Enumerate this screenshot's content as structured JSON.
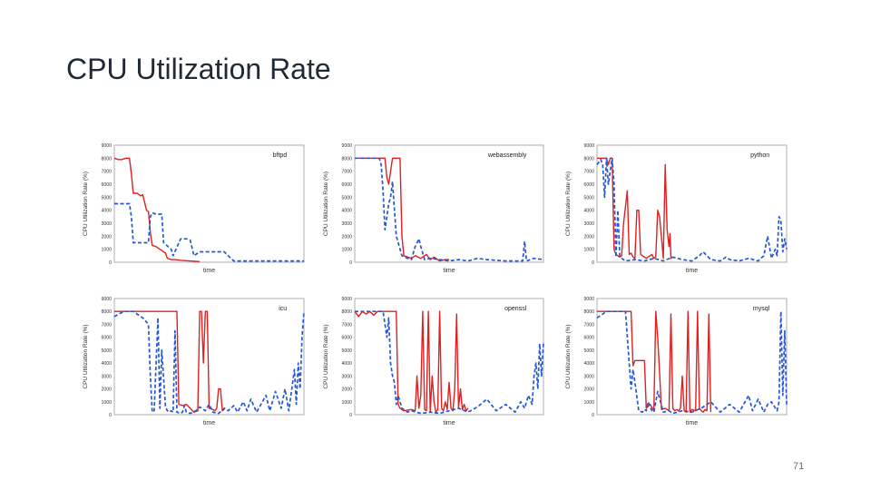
{
  "slide": {
    "title": "CPU Utilization Rate",
    "page_number": "71"
  },
  "chart_data": [
    {
      "type": "line",
      "title": "bftpd",
      "xlabel": "time",
      "ylabel": "CPU Utilization Rate (%)",
      "ylim": [
        0,
        9000
      ],
      "yticks": [
        "0",
        "1000",
        "2000",
        "3000",
        "4000",
        "5000",
        "6000",
        "7000",
        "8000",
        "9000"
      ],
      "xlim": [
        0,
        100
      ],
      "colors": {
        "solid": "#e02020",
        "dashed": "#2457d6"
      },
      "series": [
        {
          "name": "solid",
          "style": "solid",
          "x": [
            0,
            2,
            4,
            6,
            8,
            9,
            10,
            12,
            14,
            15,
            17,
            18,
            19,
            20,
            22,
            25,
            27,
            28,
            30,
            32,
            35,
            40,
            45
          ],
          "y": [
            8000,
            7900,
            7900,
            8000,
            8000,
            6800,
            5300,
            5300,
            5100,
            5200,
            4000,
            3900,
            2300,
            1300,
            1200,
            900,
            700,
            300,
            200,
            200,
            150,
            100,
            50
          ]
        },
        {
          "name": "dashed",
          "style": "dashed",
          "x": [
            0,
            5,
            8,
            9,
            10,
            15,
            18,
            19,
            20,
            22,
            25,
            26,
            30,
            31,
            35,
            38,
            40,
            42,
            45,
            48,
            50,
            55,
            58,
            60,
            63,
            70,
            80,
            90,
            100
          ],
          "y": [
            4500,
            4500,
            4500,
            3500,
            1500,
            1500,
            1500,
            3500,
            3800,
            3700,
            3700,
            1500,
            1000,
            500,
            1800,
            1800,
            1700,
            500,
            800,
            800,
            800,
            800,
            800,
            500,
            100,
            100,
            100,
            100,
            100
          ]
        }
      ]
    },
    {
      "type": "line",
      "title": "webassembly",
      "xlabel": "time",
      "ylabel": "CPU Utilization Rate (%)",
      "ylim": [
        0,
        9000
      ],
      "yticks": [
        "0",
        "1000",
        "2000",
        "3000",
        "4000",
        "5000",
        "6000",
        "7000",
        "8000",
        "9000"
      ],
      "xlim": [
        0,
        100
      ],
      "colors": {
        "solid": "#e02020",
        "dashed": "#2457d6"
      },
      "series": [
        {
          "name": "solid",
          "style": "solid",
          "x": [
            0,
            5,
            10,
            14,
            16,
            17,
            18,
            20,
            22,
            24,
            25,
            26,
            28,
            30,
            32,
            35,
            38,
            40,
            42,
            45,
            48,
            50
          ],
          "y": [
            8000,
            8000,
            8000,
            8000,
            8000,
            6500,
            6000,
            8000,
            8000,
            8000,
            2000,
            500,
            400,
            300,
            500,
            300,
            600,
            200,
            400,
            100,
            200,
            200
          ]
        },
        {
          "name": "dashed",
          "style": "dashed",
          "x": [
            0,
            5,
            10,
            13,
            14,
            15,
            16,
            17,
            18,
            19,
            20,
            22,
            25,
            28,
            30,
            32,
            34,
            35,
            37,
            40,
            45,
            50,
            55,
            60,
            65,
            70,
            80,
            89,
            90,
            91,
            95,
            100
          ],
          "y": [
            8000,
            8000,
            8000,
            8000,
            7500,
            5500,
            2500,
            3500,
            4500,
            5000,
            6200,
            2000,
            500,
            300,
            200,
            1200,
            1800,
            1200,
            200,
            300,
            200,
            100,
            200,
            100,
            300,
            200,
            100,
            100,
            1600,
            100,
            300,
            200
          ]
        }
      ]
    },
    {
      "type": "line",
      "title": "python",
      "xlabel": "time",
      "ylabel": "CPU Utilization Rate (%)",
      "ylim": [
        0,
        9000
      ],
      "yticks": [
        "0",
        "1000",
        "2000",
        "3000",
        "4000",
        "5000",
        "6000",
        "7000",
        "8000",
        "9000"
      ],
      "xlim": [
        0,
        100
      ],
      "colors": {
        "solid": "#e02020",
        "dashed": "#2457d6"
      },
      "series": [
        {
          "name": "solid",
          "style": "solid",
          "x": [
            0,
            3,
            5,
            6,
            7,
            8,
            9,
            10,
            11,
            12,
            13,
            14,
            16,
            17,
            18,
            19,
            20,
            21,
            22,
            23,
            24,
            26,
            28,
            29,
            30,
            31,
            32,
            33,
            35,
            36,
            37,
            38,
            38.5,
            39,
            40
          ],
          "y": [
            8000,
            8000,
            8000,
            7500,
            8000,
            8000,
            1000,
            600,
            500,
            400,
            500,
            3000,
            5500,
            600,
            700,
            400,
            300,
            4000,
            4000,
            600,
            500,
            300,
            500,
            600,
            300,
            400,
            4000,
            3500,
            300,
            7500,
            2500,
            1200,
            2200,
            300,
            400
          ]
        },
        {
          "name": "dashed",
          "style": "dashed",
          "x": [
            0,
            2,
            3,
            4,
            5,
            6,
            8,
            9,
            10,
            11,
            12,
            13,
            15,
            20,
            25,
            30,
            35,
            40,
            45,
            50,
            52,
            54,
            56,
            60,
            65,
            68,
            70,
            75,
            80,
            85,
            88,
            90,
            92,
            94,
            95,
            96,
            97,
            98,
            99,
            100
          ],
          "y": [
            7500,
            7900,
            7500,
            5000,
            8000,
            6000,
            8000,
            6000,
            400,
            4000,
            500,
            300,
            100,
            200,
            100,
            300,
            100,
            400,
            200,
            100,
            300,
            500,
            800,
            200,
            100,
            400,
            200,
            100,
            300,
            100,
            500,
            2000,
            300,
            1000,
            500,
            3500,
            3200,
            800,
            1800,
            1000
          ]
        }
      ]
    },
    {
      "type": "line",
      "title": "icu",
      "xlabel": "time",
      "ylabel": "CPU Utilization Rate (%)",
      "ylim": [
        0,
        9000
      ],
      "yticks": [
        "0",
        "1000",
        "2000",
        "3000",
        "4000",
        "5000",
        "6000",
        "7000",
        "8000",
        "9000"
      ],
      "xlim": [
        0,
        100
      ],
      "colors": {
        "solid": "#e02020",
        "dashed": "#2457d6"
      },
      "series": [
        {
          "name": "solid",
          "style": "solid",
          "x": [
            0,
            5,
            10,
            15,
            20,
            25,
            30,
            33,
            34,
            36,
            38,
            40,
            42,
            44,
            45,
            46,
            47,
            48,
            49,
            50,
            52,
            53,
            54,
            55,
            56,
            57,
            58
          ],
          "y": [
            8000,
            8000,
            8000,
            8000,
            8000,
            8000,
            8000,
            8000,
            800,
            700,
            800,
            500,
            200,
            300,
            8000,
            8000,
            4000,
            8000,
            8000,
            500,
            400,
            300,
            500,
            2000,
            2000,
            300,
            400
          ]
        },
        {
          "name": "dashed",
          "style": "dashed",
          "x": [
            0,
            5,
            10,
            15,
            18,
            19,
            20,
            21,
            23,
            24,
            25,
            27,
            28,
            29,
            30,
            31,
            32,
            33,
            35,
            36,
            37,
            38,
            40,
            43,
            45,
            48,
            50,
            52,
            55,
            58,
            60,
            63,
            65,
            68,
            70,
            72,
            75,
            80,
            82,
            85,
            88,
            90,
            92,
            95,
            96,
            97,
            98,
            99,
            100
          ],
          "y": [
            7600,
            8000,
            8000,
            7500,
            7000,
            3000,
            200,
            300,
            7500,
            500,
            5000,
            600,
            300,
            200,
            300,
            200,
            6500,
            200,
            100,
            200,
            700,
            200,
            100,
            300,
            600,
            300,
            800,
            200,
            100,
            500,
            300,
            700,
            200,
            1000,
            300,
            1200,
            200,
            1500,
            300,
            1800,
            500,
            2000,
            300,
            3500,
            800,
            4000,
            2000,
            6000,
            8000
          ]
        }
      ]
    },
    {
      "type": "line",
      "title": "openssl",
      "xlabel": "time",
      "ylabel": "CPU Utilization Rate (%)",
      "ylim": [
        0,
        9000
      ],
      "yticks": [
        "0",
        "1000",
        "2000",
        "3000",
        "4000",
        "5000",
        "6000",
        "7000",
        "8000",
        "9000"
      ],
      "xlim": [
        0,
        100
      ],
      "colors": {
        "solid": "#e02020",
        "dashed": "#2457d6"
      },
      "series": [
        {
          "name": "solid",
          "style": "solid",
          "x": [
            0,
            2,
            4,
            6,
            8,
            10,
            12,
            15,
            20,
            22,
            23,
            24,
            26,
            30,
            32,
            33,
            34,
            35,
            36,
            37,
            38,
            39,
            40,
            41,
            42,
            43,
            44,
            45,
            46,
            47,
            48,
            49,
            50,
            51,
            52,
            53,
            54,
            55,
            56,
            57,
            58,
            59,
            60
          ],
          "y": [
            8000,
            7600,
            8000,
            7800,
            8000,
            7700,
            8000,
            8000,
            8000,
            8000,
            800,
            500,
            300,
            400,
            300,
            3000,
            500,
            1500,
            8000,
            400,
            300,
            8000,
            200,
            3000,
            1000,
            200,
            400,
            8000,
            500,
            300,
            1000,
            400,
            2500,
            500,
            300,
            2000,
            7800,
            500,
            2000,
            400,
            800,
            300,
            500
          ]
        },
        {
          "name": "dashed",
          "style": "dashed",
          "x": [
            0,
            5,
            10,
            15,
            16,
            17,
            18,
            19,
            20,
            21,
            22,
            23,
            25,
            28,
            30,
            35,
            40,
            45,
            50,
            55,
            60,
            65,
            70,
            75,
            80,
            85,
            88,
            90,
            92,
            94,
            95,
            96,
            97,
            98,
            99,
            100
          ],
          "y": [
            8000,
            8000,
            8000,
            8000,
            7000,
            6000,
            7500,
            4000,
            3000,
            2500,
            800,
            1500,
            500,
            200,
            300,
            100,
            200,
            100,
            300,
            500,
            200,
            600,
            1200,
            300,
            800,
            200,
            1000,
            500,
            1500,
            800,
            3000,
            4000,
            2000,
            5500,
            3000,
            5600
          ]
        }
      ]
    },
    {
      "type": "line",
      "title": "mysql",
      "xlabel": "time",
      "ylabel": "CPU Utilization Rate (%)",
      "ylim": [
        0,
        9000
      ],
      "yticks": [
        "0",
        "1000",
        "2000",
        "3000",
        "4000",
        "5000",
        "6000",
        "7000",
        "8000",
        "9000"
      ],
      "xlim": [
        0,
        100
      ],
      "colors": {
        "solid": "#e02020",
        "dashed": "#2457d6"
      },
      "series": [
        {
          "name": "solid",
          "style": "solid",
          "x": [
            0,
            5,
            10,
            15,
            18,
            19,
            20,
            22,
            25,
            26,
            28,
            30,
            31,
            32,
            34,
            36,
            38,
            39,
            40,
            41,
            42,
            43,
            44,
            45,
            46,
            47,
            48,
            49,
            50,
            52,
            53,
            54,
            55,
            56,
            57,
            58,
            59,
            60
          ],
          "y": [
            8000,
            8000,
            8000,
            8000,
            8000,
            3800,
            4200,
            4200,
            4200,
            500,
            800,
            300,
            8000,
            6000,
            400,
            500,
            300,
            7800,
            500,
            300,
            400,
            300,
            500,
            3000,
            300,
            200,
            8000,
            200,
            400,
            300,
            8000,
            500,
            300,
            200,
            400,
            300,
            7800,
            200
          ]
        },
        {
          "name": "dashed",
          "style": "dashed",
          "x": [
            0,
            5,
            10,
            15,
            17,
            18,
            19,
            20,
            22,
            24,
            25,
            26,
            27,
            28,
            29,
            30,
            32,
            35,
            38,
            40,
            45,
            50,
            55,
            60,
            65,
            70,
            75,
            80,
            82,
            85,
            88,
            90,
            92,
            95,
            96,
            97,
            98,
            99,
            100
          ],
          "y": [
            7500,
            8000,
            8000,
            8000,
            4000,
            2000,
            3500,
            2500,
            300,
            200,
            400,
            300,
            1000,
            600,
            300,
            200,
            1800,
            200,
            300,
            100,
            300,
            200,
            500,
            1000,
            200,
            800,
            200,
            1500,
            300,
            1200,
            200,
            800,
            1000,
            300,
            1000,
            8000,
            1500,
            6500,
            800
          ]
        }
      ]
    }
  ]
}
